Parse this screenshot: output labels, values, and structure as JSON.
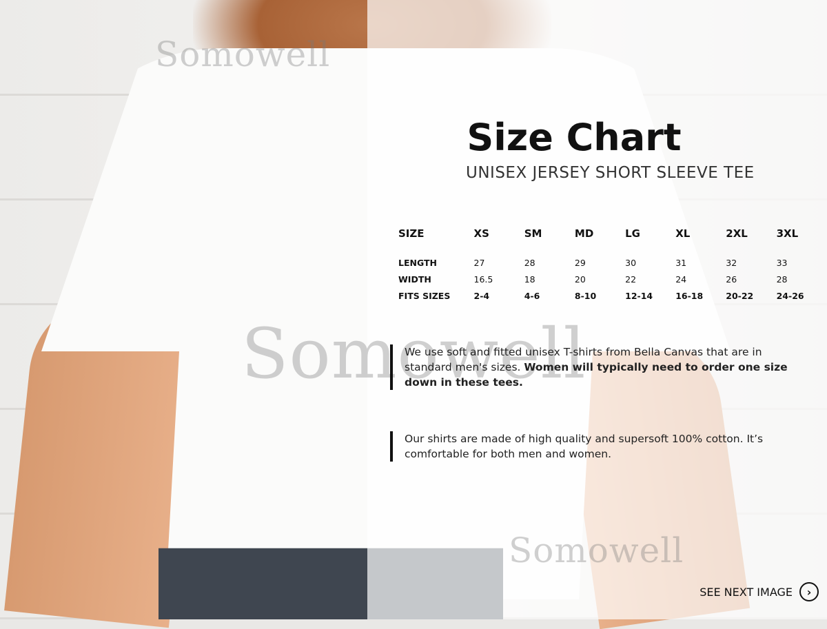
{
  "watermark": "Somowell",
  "title": "Size Chart",
  "subtitle": "UNISEX JERSEY SHORT SLEEVE TEE",
  "table": {
    "headers": [
      "SIZE",
      "XS",
      "SM",
      "MD",
      "LG",
      "XL",
      "2XL",
      "3XL"
    ],
    "rows": [
      {
        "label": "LENGTH",
        "values": [
          "27",
          "28",
          "29",
          "30",
          "31",
          "32",
          "33"
        ]
      },
      {
        "label": "WIDTH",
        "values": [
          "16.5",
          "18",
          "20",
          "22",
          "24",
          "26",
          "28"
        ]
      },
      {
        "label": "FITS SIZES",
        "values": [
          "2-4",
          "4-6",
          "8-10",
          "12-14",
          "16-18",
          "20-22",
          "24-26"
        ]
      }
    ]
  },
  "notes": [
    {
      "text": "We use soft and fitted unisex T-shirts from Bella Canvas that are in standard men's sizes. ",
      "bold": "Women will typically need to order one size down in these tees."
    },
    {
      "text": "Our shirts are made of high quality and supersoft 100% cotton. It’s comfortable for both men and women."
    }
  ],
  "next": {
    "label": "SEE NEXT IMAGE",
    "icon": "chevron-right-circle-icon"
  }
}
